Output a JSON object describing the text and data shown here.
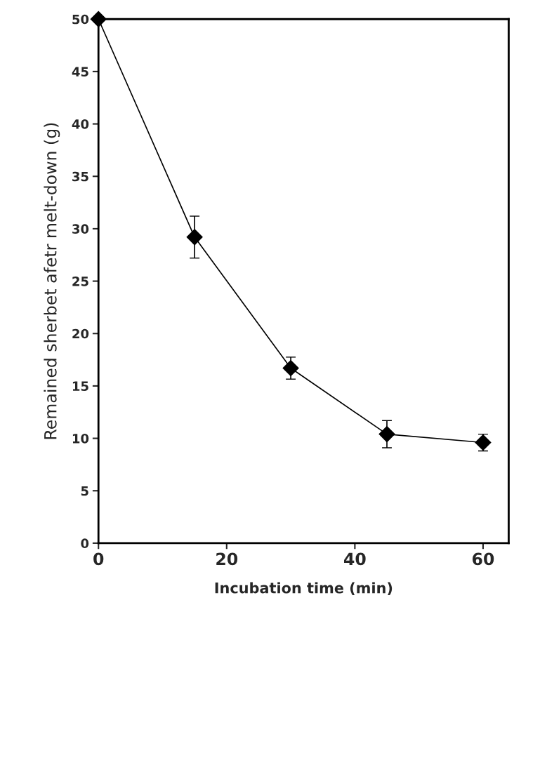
{
  "chart_data": {
    "type": "line",
    "xlabel": "Incubation time (min)",
    "ylabel": "Remained sherbet afetr melt-down (g)",
    "x": [
      0,
      15,
      30,
      45,
      60
    ],
    "series": [
      {
        "color": "#000000",
        "values": [
          50,
          29.2,
          16.7,
          10.4,
          9.6
        ],
        "errors": [
          null,
          2.0,
          1.05,
          1.3,
          0.8
        ]
      }
    ],
    "xlim": [
      0,
      64
    ],
    "xticks": [
      0,
      20,
      40,
      60
    ],
    "ylim": [
      0,
      50
    ],
    "yticks": [
      0,
      5,
      10,
      15,
      20,
      25,
      30,
      35,
      40,
      45,
      50
    ],
    "marker": "diamond",
    "line_style": "solid",
    "grid": false,
    "legend": false
  }
}
